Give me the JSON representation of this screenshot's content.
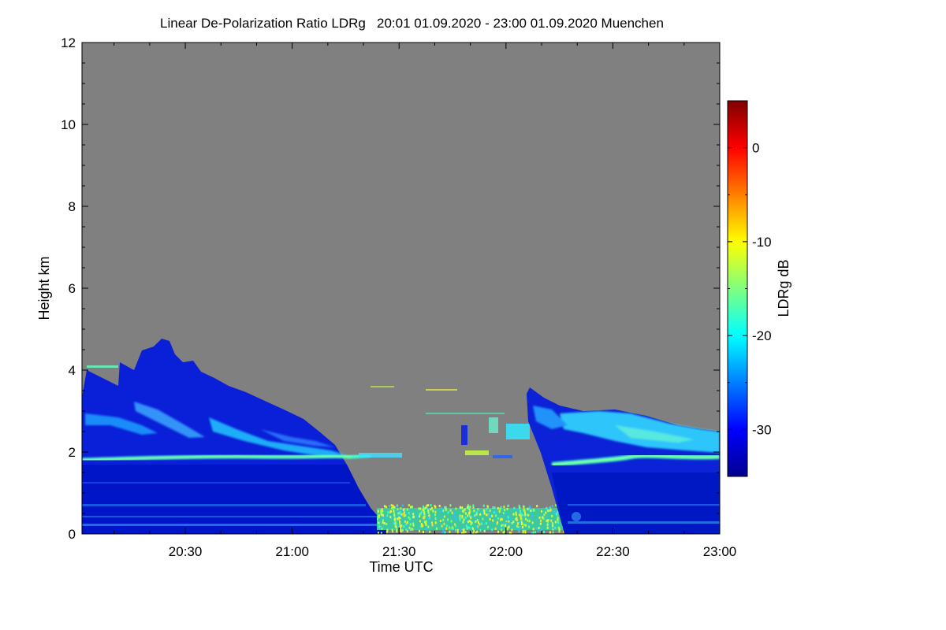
{
  "chart_data": {
    "type": "heatmap",
    "title": "Linear De-Polarization Ratio LDRg   20:01 01.09.2020 - 23:00 01.09.2020 Muenchen",
    "xlabel": "Time UTC",
    "ylabel": "Height km",
    "x_ticks": [
      "20:30",
      "21:00",
      "21:30",
      "22:00",
      "22:30",
      "23:00"
    ],
    "x_range": [
      "20:01",
      "23:00"
    ],
    "y_ticks": [
      "0",
      "2",
      "4",
      "6",
      "8",
      "10",
      "12"
    ],
    "ylim": [
      0,
      12
    ],
    "colorbar": {
      "label": "LDRg dB",
      "ticks": [
        "0",
        "-10",
        "-20",
        "-30"
      ],
      "range": [
        -35,
        5
      ],
      "colormap": "jet"
    },
    "background_color": "#808080",
    "features": [
      {
        "region": "aerosol layer",
        "time": [
          "20:01",
          "21:20"
        ],
        "height_km": [
          0,
          4.8
        ],
        "ldr_db": -31
      },
      {
        "region": "depolarizing layer",
        "time": [
          "20:01",
          "21:25"
        ],
        "height_km": [
          1.7,
          1.9
        ],
        "ldr_db": -22
      },
      {
        "region": "near-ground noise",
        "time": [
          "21:25",
          "22:17"
        ],
        "height_km": [
          0,
          0.5
        ],
        "ldr_db": -12
      },
      {
        "region": "cloud layer",
        "time": [
          "22:07",
          "23:00"
        ],
        "height_km": [
          0,
          3.5
        ],
        "ldr_db": -30
      },
      {
        "region": "depolarizing layer",
        "time": [
          "22:12",
          "23:00"
        ],
        "height_km": [
          1.6,
          1.9
        ],
        "ldr_db": -21
      }
    ]
  }
}
